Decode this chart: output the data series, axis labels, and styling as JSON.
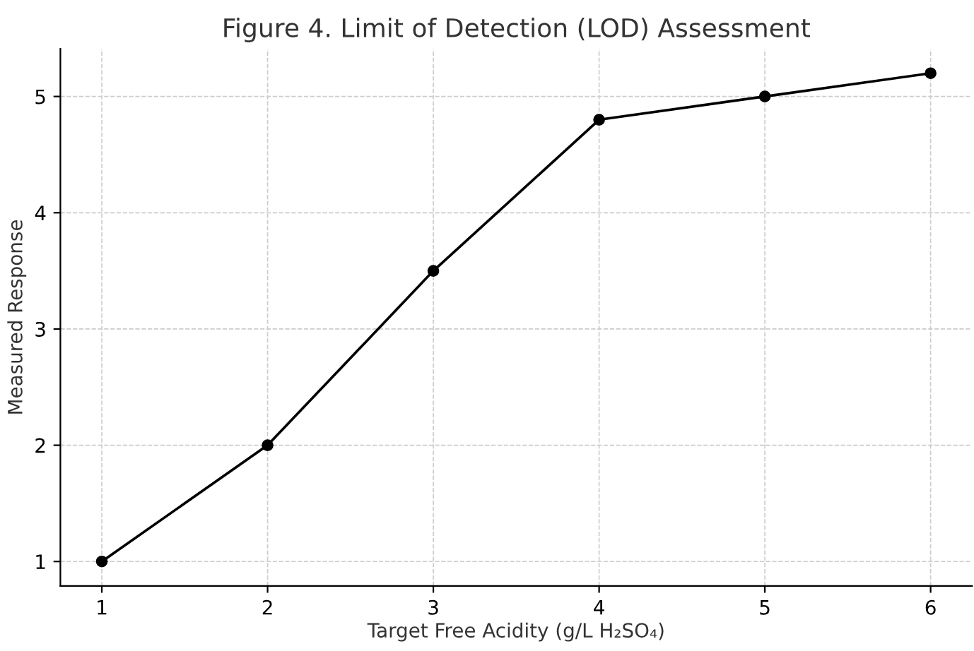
{
  "chart_data": {
    "type": "line",
    "title": "Figure 4. Limit of Detection (LOD) Assessment",
    "xlabel": "Target Free Acidity (g/L H₂SO₄)",
    "ylabel": "Measured Response",
    "x": [
      1,
      2,
      3,
      4,
      5,
      6
    ],
    "series": [
      {
        "color": "#000000",
        "values": [
          1,
          2,
          3.5,
          4.8,
          5.0,
          5.2
        ]
      }
    ],
    "xlim": [
      0.75,
      6.25
    ],
    "ylim": [
      0.79,
      5.41
    ],
    "xticks": [
      1,
      2,
      3,
      4,
      5,
      6
    ],
    "yticks": [
      1,
      2,
      3,
      4,
      5
    ],
    "grid": true,
    "marker": "circle",
    "line_style": "solid"
  }
}
